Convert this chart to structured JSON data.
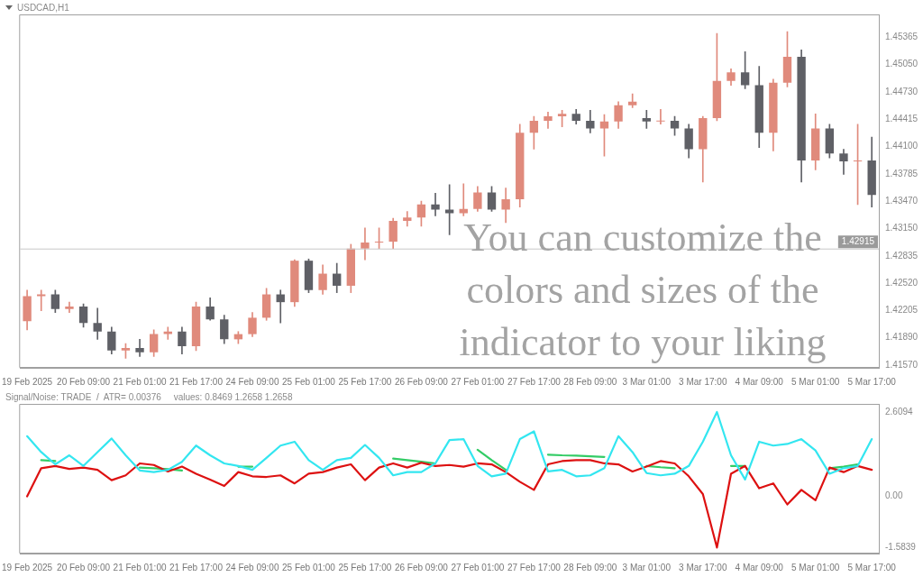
{
  "chart_data": [
    {
      "type": "candlestick",
      "title": "USDCAD,H1",
      "categories": [
        "19 Feb 2025",
        null,
        null,
        null,
        "20 Feb 09:00",
        null,
        null,
        null,
        "21 Feb 01:00",
        null,
        null,
        null,
        "21 Feb 17:00",
        null,
        null,
        null,
        "24 Feb 09:00",
        null,
        null,
        null,
        "25 Feb 01:00",
        null,
        null,
        null,
        "25 Feb 17:00",
        null,
        null,
        null,
        "26 Feb 09:00",
        null,
        null,
        null,
        "27 Feb 01:00",
        null,
        null,
        null,
        "27 Feb 17:00",
        null,
        null,
        null,
        "28 Feb 09:00",
        null,
        null,
        null,
        "3 Mar 01:00",
        null,
        null,
        null,
        "3 Mar 17:00",
        null,
        null,
        null,
        "4 Mar 09:00",
        null,
        null,
        null,
        "5 Mar 01:00",
        null,
        null,
        null,
        "5 Mar 17:00"
      ],
      "ohlc": [
        [
          1.4208,
          1.4244,
          1.4198,
          1.4237
        ],
        [
          1.4237,
          1.4244,
          1.422,
          1.4239
        ],
        [
          1.4239,
          1.4244,
          1.4218,
          1.4222
        ],
        [
          1.4222,
          1.423,
          1.4218,
          1.4225
        ],
        [
          1.4225,
          1.4228,
          1.4201,
          1.4206
        ],
        [
          1.4206,
          1.4223,
          1.4187,
          1.4196
        ],
        [
          1.4196,
          1.4201,
          1.417,
          1.4174
        ],
        [
          1.4174,
          1.4182,
          1.4165,
          1.4177
        ],
        [
          1.4177,
          1.4187,
          1.4167,
          1.4172
        ],
        [
          1.4172,
          1.4198,
          1.4167,
          1.4193
        ],
        [
          1.4193,
          1.4201,
          1.4187,
          1.4196
        ],
        [
          1.4196,
          1.4201,
          1.417,
          1.4179
        ],
        [
          1.4179,
          1.423,
          1.4174,
          1.4225
        ],
        [
          1.4225,
          1.4235,
          1.4209,
          1.421
        ],
        [
          1.421,
          1.4215,
          1.4182,
          1.4187
        ],
        [
          1.4187,
          1.4196,
          1.4182,
          1.4193
        ],
        [
          1.4193,
          1.4218,
          1.419,
          1.4212
        ],
        [
          1.4212,
          1.4246,
          1.4209,
          1.4239
        ],
        [
          1.4239,
          1.4244,
          1.4206,
          1.423
        ],
        [
          1.423,
          1.4279,
          1.4225,
          1.4278
        ],
        [
          1.4278,
          1.428,
          1.4241,
          1.4244
        ],
        [
          1.4244,
          1.4273,
          1.4239,
          1.4263
        ],
        [
          1.4263,
          1.4275,
          1.4241,
          1.4249
        ],
        [
          1.4249,
          1.4297,
          1.4241,
          1.4292
        ],
        [
          1.4292,
          1.4316,
          1.4279,
          1.4299
        ],
        [
          1.4299,
          1.4316,
          1.4292,
          1.43
        ],
        [
          1.43,
          1.4327,
          1.4292,
          1.4324
        ],
        [
          1.4324,
          1.4335,
          1.4318,
          1.4328
        ],
        [
          1.4328,
          1.4347,
          1.4318,
          1.4343
        ],
        [
          1.4343,
          1.4356,
          1.433,
          1.4337
        ],
        [
          1.4337,
          1.4366,
          1.4308,
          1.4333
        ],
        [
          1.4333,
          1.4367,
          1.433,
          1.4338
        ],
        [
          1.4338,
          1.4364,
          1.4335,
          1.4357
        ],
        [
          1.4357,
          1.4364,
          1.4335,
          1.4337
        ],
        [
          1.4337,
          1.4362,
          1.4322,
          1.4349
        ],
        [
          1.4349,
          1.4436,
          1.434,
          1.4426
        ],
        [
          1.4426,
          1.4445,
          1.4407,
          1.444
        ],
        [
          1.444,
          1.445,
          1.4431,
          1.4445
        ],
        [
          1.4445,
          1.4452,
          1.4433,
          1.4448
        ],
        [
          1.4448,
          1.4453,
          1.4436,
          1.444
        ],
        [
          1.444,
          1.4452,
          1.4426,
          1.4431
        ],
        [
          1.4431,
          1.4447,
          1.4399,
          1.4439
        ],
        [
          1.4439,
          1.4462,
          1.4431,
          1.4458
        ],
        [
          1.4458,
          1.4471,
          1.4455,
          1.4462
        ],
        [
          1.4443,
          1.4452,
          1.4431,
          1.4439
        ],
        [
          1.4439,
          1.4453,
          1.4436,
          1.444
        ],
        [
          1.444,
          1.4445,
          1.4423,
          1.4431
        ],
        [
          1.4431,
          1.4436,
          1.4397,
          1.4407
        ],
        [
          1.4407,
          1.4445,
          1.4369,
          1.4443
        ],
        [
          1.4443,
          1.4541,
          1.444,
          1.4486
        ],
        [
          1.4486,
          1.45,
          1.4481,
          1.4496
        ],
        [
          1.4496,
          1.452,
          1.4477,
          1.4481
        ],
        [
          1.4481,
          1.4503,
          1.4409,
          1.4426
        ],
        [
          1.4426,
          1.4488,
          1.4405,
          1.4484
        ],
        [
          1.4484,
          1.4543,
          1.4479,
          1.4514
        ],
        [
          1.4514,
          1.4522,
          1.4369,
          1.4394
        ],
        [
          1.4394,
          1.4448,
          1.4383,
          1.4431
        ],
        [
          1.4431,
          1.4436,
          1.4397,
          1.4402
        ],
        [
          1.4402,
          1.4407,
          1.4378,
          1.4393
        ],
        [
          1.4393,
          1.4436,
          1.4343,
          1.4394
        ],
        [
          1.4394,
          1.4421,
          1.434,
          1.4354
        ]
      ],
      "colors": [
        "#e08a7c",
        "#e08a7c",
        "#5f6066",
        "#e08a7c",
        "#5f6066",
        "#5f6066",
        "#5f6066",
        "#e08a7c",
        "#5f6066",
        "#e08a7c",
        "#e08a7c",
        "#5f6066",
        "#e08a7c",
        "#5f6066",
        "#5f6066",
        "#e08a7c",
        "#e08a7c",
        "#e08a7c",
        "#5f6066",
        "#e08a7c",
        "#5f6066",
        "#e08a7c",
        "#5f6066",
        "#e08a7c",
        "#e08a7c",
        "#e08a7c",
        "#e08a7c",
        "#e08a7c",
        "#e08a7c",
        "#5f6066",
        "#5f6066",
        "#e08a7c",
        "#e08a7c",
        "#5f6066",
        "#e08a7c",
        "#e08a7c",
        "#e08a7c",
        "#e08a7c",
        "#e08a7c",
        "#5f6066",
        "#5f6066",
        "#e08a7c",
        "#e08a7c",
        "#e08a7c",
        "#5f6066",
        "#e08a7c",
        "#5f6066",
        "#5f6066",
        "#e08a7c",
        "#e08a7c",
        "#e08a7c",
        "#5f6066",
        "#5f6066",
        "#e08a7c",
        "#e08a7c",
        "#5f6066",
        "#e08a7c",
        "#5f6066",
        "#5f6066",
        "#e08a7c",
        "#5f6066"
      ],
      "ylim": [
        1.4154,
        1.4563
      ],
      "yticks": [
        1.45365,
        {
          "value": 1.4505,
          "label": "1.45050"
        },
        {
          "value": 1.4473,
          "label": "1.44730"
        },
        1.44415,
        {
          "value": 1.441,
          "label": "1.44100"
        },
        1.43785,
        {
          "value": 1.4347,
          "label": "1.43470"
        },
        {
          "value": 1.4315,
          "label": "1.43150"
        },
        1.42835,
        {
          "value": 1.4252,
          "label": "1.42520"
        },
        1.42205,
        {
          "value": 1.4189,
          "label": "1.41890"
        },
        {
          "value": 1.4157,
          "label": "1.41570"
        }
      ],
      "ref_lines": [
        {
          "axis": "y",
          "value": 1.42915,
          "label": "1.42915",
          "color": "#c8c8c8"
        }
      ],
      "annotations": [
        "You can customize the colors and sizes of the indicator to your liking"
      ]
    },
    {
      "type": "line",
      "title": "Signal/Noise: TRADE  /  ATR= 0.00376     values: 0.8469 1.2658 1.2658",
      "categories": [
        "19 Feb 2025",
        null,
        null,
        null,
        "20 Feb 09:00",
        null,
        null,
        null,
        "21 Feb 01:00",
        null,
        null,
        null,
        "21 Feb 17:00",
        null,
        null,
        null,
        "24 Feb 09:00",
        null,
        null,
        null,
        "25 Feb 01:00",
        null,
        null,
        null,
        "25 Feb 17:00",
        null,
        null,
        null,
        "26 Feb 09:00",
        null,
        null,
        null,
        "27 Feb 01:00",
        null,
        null,
        null,
        "27 Feb 17:00",
        null,
        null,
        null,
        "28 Feb 09:00",
        null,
        null,
        null,
        "3 Mar 01:00",
        null,
        null,
        null,
        "3 Mar 17:00",
        null,
        null,
        null,
        "4 Mar 09:00",
        null,
        null,
        null,
        "5 Mar 01:00",
        null,
        null,
        null,
        "5 Mar 17:00"
      ],
      "series": [
        {
          "color": "#33e6f0",
          "values": [
            1.86,
            1.37,
            0.99,
            1.27,
            0.94,
            1.37,
            1.79,
            1.27,
            0.8,
            0.75,
            0.82,
            1.07,
            1.57,
            1.27,
            1.02,
            0.94,
            0.82,
            1.19,
            1.57,
            1.69,
            1.12,
            0.82,
            1.12,
            1.19,
            1.59,
            1.19,
            0.65,
            0.75,
            0.75,
            1.02,
            1.74,
            1.77,
            0.94,
            0.62,
            0.7,
            1.77,
            2.01,
            0.77,
            0.82,
            0.62,
            0.65,
            0.87,
            1.86,
            1.37,
            0.72,
            0.65,
            0.7,
            0.94,
            1.69,
            2.6094,
            1.27,
            0.52,
            1.69,
            1.57,
            1.62,
            1.77,
            1.42,
            0.7,
            0.87,
            0.94,
            1.77
          ]
        },
        {
          "color": "#dd1111",
          "values": [
            0.0,
            0.87,
            0.94,
            0.85,
            0.89,
            0.82,
            0.5,
            0.65,
            1.02,
            0.97,
            0.77,
            0.92,
            0.7,
            0.52,
            0.32,
            0.75,
            0.62,
            0.6,
            0.65,
            0.4,
            0.7,
            0.75,
            0.89,
            0.99,
            0.5,
            0.89,
            1.02,
            0.89,
            1.04,
            0.94,
            0.97,
            0.92,
            1.02,
            0.99,
            0.75,
            0.45,
            0.2,
            0.99,
            1.09,
            1.12,
            1.12,
            1.02,
            0.99,
            0.77,
            0.92,
            1.09,
            1.02,
            0.62,
            0.07,
            -1.5839,
            0.7,
            0.94,
            0.25,
            0.4,
            -0.25,
            0.2,
            -0.12,
            0.89,
            0.75,
            0.94,
            0.82
          ]
        },
        {
          "color": "#33cc66",
          "values": [
            null,
            1.12,
            1.09,
            null,
            null,
            null,
            null,
            null,
            0.89,
            0.87,
            0.84,
            0.8,
            null,
            null,
            null,
            0.92,
            0.92,
            null,
            null,
            null,
            null,
            null,
            null,
            null,
            null,
            null,
            1.17,
            1.12,
            1.07,
            1.02,
            null,
            null,
            1.44,
            1.12,
            0.82,
            null,
            null,
            1.29,
            1.27,
            1.26,
            1.24,
            1.22,
            null,
            null,
            0.94,
            0.9,
            0.87,
            null,
            null,
            null,
            0.94,
            0.94,
            null,
            null,
            null,
            null,
            null,
            0.87,
            0.92,
            0.99,
            null
          ]
        }
      ],
      "ylim": [
        -1.77,
        2.86
      ],
      "yticks": [
        2.6094,
        {
          "value": 0,
          "label": "0.00"
        },
        -1.5839
      ],
      "marker": "none"
    }
  ]
}
